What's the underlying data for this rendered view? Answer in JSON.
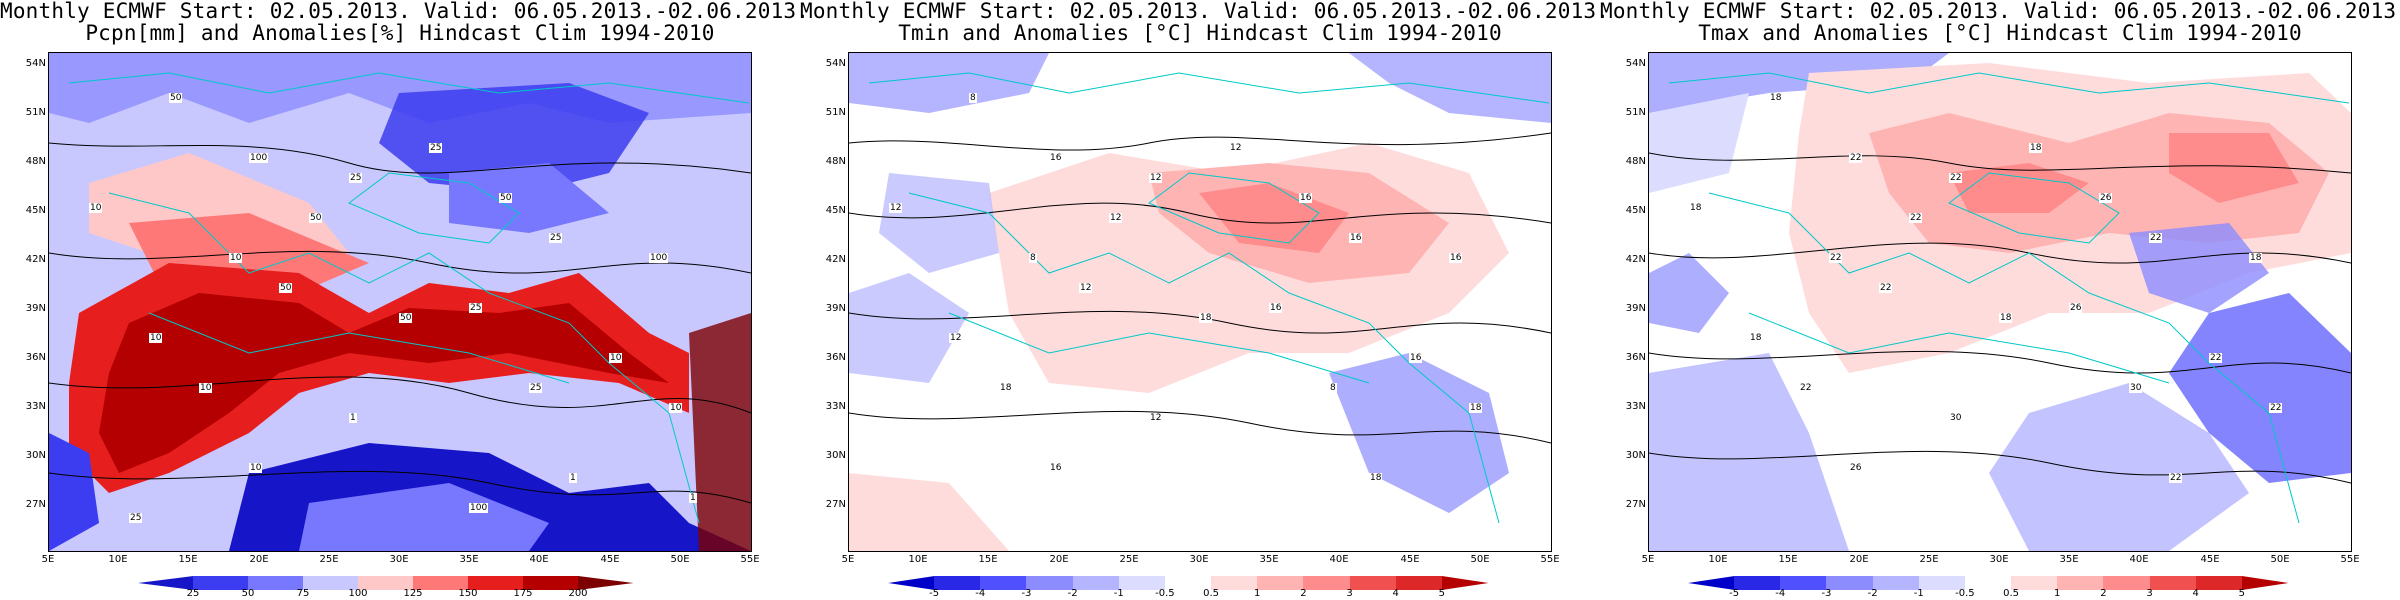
{
  "panels": [
    {
      "title_line1": "Monthly ECMWF Start: 02.05.2013. Valid: 06.05.2013.-02.06.2013.",
      "title_line2": "Pcpn[mm] and Anomalies[%] Hindcast Clim 1994-2010",
      "lat_labels": [
        "54N",
        "51N",
        "48N",
        "45N",
        "42N",
        "39N",
        "36N",
        "33N",
        "30N",
        "27N"
      ],
      "lon_labels": [
        "5E",
        "10E",
        "15E",
        "20E",
        "25E",
        "30E",
        "35E",
        "40E",
        "45E",
        "50E",
        "55E"
      ],
      "colorbar_ticks": [
        "25",
        "50",
        "75",
        "100",
        "125",
        "150",
        "175",
        "200"
      ],
      "colorbar_colors": [
        "#1616c8",
        "#3c3cf0",
        "#7878ff",
        "#c8c8ff",
        "#ffc8c8",
        "#ff7878",
        "#e61e1e",
        "#b40000",
        "#7d0000"
      ],
      "contour_labels": [
        "50",
        "25",
        "10",
        "100",
        "25",
        "50",
        "10",
        "50",
        "25",
        "100",
        "50",
        "50",
        "25",
        "10",
        "10",
        "10",
        "25",
        "10",
        "1",
        "10",
        "1",
        "1",
        "100",
        "25"
      ],
      "map_type": "precipitation"
    },
    {
      "title_line1": "Monthly ECMWF Start: 02.05.2013. Valid: 06.05.2013.-02.06.2013.",
      "title_line2": "Tmin and Anomalies [°C] Hindcast Clim 1994-2010",
      "lat_labels": [
        "54N",
        "51N",
        "48N",
        "45N",
        "42N",
        "39N",
        "36N",
        "33N",
        "30N",
        "27N"
      ],
      "lon_labels": [
        "5E",
        "10E",
        "15E",
        "20E",
        "25E",
        "30E",
        "35E",
        "40E",
        "45E",
        "50E",
        "55E"
      ],
      "colorbar_ticks": [
        "-5",
        "-4",
        "-3",
        "-2",
        "-1",
        "-0.5",
        "0.5",
        "1",
        "2",
        "3",
        "4",
        "5"
      ],
      "colorbar_colors": [
        "#0000c8",
        "#2828e6",
        "#5050ff",
        "#8c8cff",
        "#b4b4ff",
        "#dcdcff",
        "#ffffff",
        "#ffdcdc",
        "#ffb4b4",
        "#ff8c8c",
        "#f05050",
        "#dc2828",
        "#b40000"
      ],
      "contour_labels": [
        "8",
        "12",
        "12",
        "16",
        "12",
        "16",
        "8",
        "12",
        "16",
        "16",
        "12",
        "18",
        "16",
        "12",
        "16",
        "18",
        "8",
        "18",
        "12",
        "16",
        "18"
      ],
      "map_type": "tmin"
    },
    {
      "title_line1": "Monthly ECMWF Start: 02.05.2013. Valid: 06.05.2013.-02.06.2013.",
      "title_line2": "Tmax and Anomalies [°C] Hindcast Clim 1994-2010",
      "lat_labels": [
        "54N",
        "51N",
        "48N",
        "45N",
        "42N",
        "39N",
        "36N",
        "33N",
        "30N",
        "27N"
      ],
      "lon_labels": [
        "5E",
        "10E",
        "15E",
        "20E",
        "25E",
        "30E",
        "35E",
        "40E",
        "45E",
        "50E",
        "55E"
      ],
      "colorbar_ticks": [
        "-5",
        "-4",
        "-3",
        "-2",
        "-1",
        "-0.5",
        "0.5",
        "1",
        "2",
        "3",
        "4",
        "5"
      ],
      "colorbar_colors": [
        "#0000c8",
        "#2828e6",
        "#5050ff",
        "#8c8cff",
        "#b4b4ff",
        "#dcdcff",
        "#ffffff",
        "#ffdcdc",
        "#ffb4b4",
        "#ff8c8c",
        "#f05050",
        "#dc2828",
        "#b40000"
      ],
      "contour_labels": [
        "18",
        "18",
        "18",
        "22",
        "22",
        "26",
        "22",
        "22",
        "22",
        "18",
        "22",
        "18",
        "26",
        "18",
        "22",
        "22",
        "30",
        "22",
        "30",
        "26",
        "22"
      ],
      "map_type": "tmax"
    }
  ]
}
